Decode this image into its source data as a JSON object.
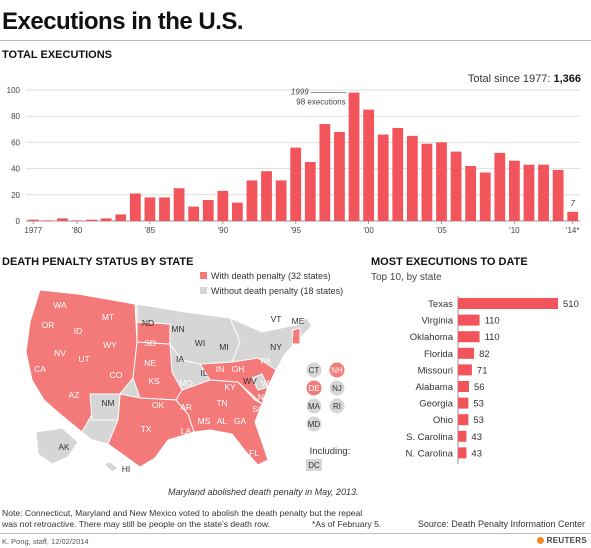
{
  "title": "Executions in the U.S.",
  "colors": {
    "accent": "#f2545b",
    "map_red": "#f47a7a",
    "map_gray": "#d6d6d6",
    "grid": "#dddddd"
  },
  "total_section": {
    "heading": "TOTAL EXECUTIONS",
    "total_label": "Total since 1977:",
    "total_value": "1,366"
  },
  "map_section": {
    "heading": "DEATH PENALTY STATUS BY STATE",
    "legend_with": "With death penalty (32 states)",
    "legend_without": "Without death penalty (18 states)",
    "including_label": "Including:",
    "maryland_note": "Maryland abolished death penalty in May, 2013.",
    "states_with": [
      "WA",
      "OR",
      "CA",
      "ID",
      "NV",
      "UT",
      "AZ",
      "MT",
      "WY",
      "CO",
      "SD",
      "NE",
      "KS",
      "OK",
      "TX",
      "MO",
      "AR",
      "LA",
      "IN",
      "OH",
      "KY",
      "TN",
      "MS",
      "AL",
      "GA",
      "FL",
      "SC",
      "NC",
      "VA",
      "PA",
      "NH",
      "DE"
    ],
    "states_without": [
      "ND",
      "MN",
      "IA",
      "WI",
      "IL",
      "MI",
      "NM",
      "WV",
      "NY",
      "VT",
      "ME",
      "CT",
      "NJ",
      "MA",
      "RI",
      "MD",
      "AK",
      "HI",
      "DC"
    ]
  },
  "most_section": {
    "heading": "MOST EXECUTIONS TO DATE",
    "subheading": "Top 10, by state"
  },
  "notes": {
    "note_line1": "Note: Connecticut, Maryland and New Mexico voted to abolish the death penalty but the repeal",
    "note_line2": "was not retroactive. There may still be people on the state's death row.",
    "as_of": "*As of February 5.",
    "source": "Source: Death Penalty Information Center",
    "credit": "K. Pong, staff, 12/02/2014",
    "brand": "REUTERS"
  },
  "chart_data": [
    {
      "type": "bar",
      "title": "TOTAL EXECUTIONS",
      "x": [
        1977,
        1978,
        1979,
        1980,
        1981,
        1982,
        1983,
        1984,
        1985,
        1986,
        1987,
        1988,
        1989,
        1990,
        1991,
        1992,
        1993,
        1994,
        1995,
        1996,
        1997,
        1998,
        1999,
        2000,
        2001,
        2002,
        2003,
        2004,
        2005,
        2006,
        2007,
        2008,
        2009,
        2010,
        2011,
        2012,
        2013,
        2014
      ],
      "values": [
        1,
        0,
        2,
        0,
        1,
        2,
        5,
        21,
        18,
        18,
        25,
        11,
        16,
        23,
        14,
        31,
        38,
        31,
        56,
        45,
        74,
        68,
        98,
        85,
        66,
        71,
        65,
        59,
        60,
        53,
        42,
        37,
        52,
        46,
        43,
        43,
        39,
        7
      ],
      "x_tick_labels": [
        "1977",
        "'80",
        "'85",
        "'90",
        "'95",
        "'00",
        "'05",
        "'10",
        "'14*"
      ],
      "x_tick_years": [
        1977,
        1980,
        1985,
        1990,
        1995,
        2000,
        2005,
        2010,
        2014
      ],
      "y_ticks": [
        0,
        20,
        40,
        60,
        80,
        100
      ],
      "ylim": [
        0,
        100
      ],
      "annotation": {
        "year": 1999,
        "label_year": "1999",
        "label_value": "98 executions"
      },
      "last_label": {
        "year": 2014,
        "text": "7"
      },
      "grid": "horizontal"
    },
    {
      "type": "bar",
      "orientation": "horizontal",
      "title": "MOST EXECUTIONS TO DATE",
      "categories": [
        "Texas",
        "Virginia",
        "Oklahoma",
        "Florida",
        "Missouri",
        "Alabama",
        "Georgia",
        "Ohio",
        "S. Carolina",
        "N. Carolina"
      ],
      "values": [
        510,
        110,
        110,
        82,
        71,
        56,
        53,
        53,
        43,
        43
      ]
    }
  ]
}
